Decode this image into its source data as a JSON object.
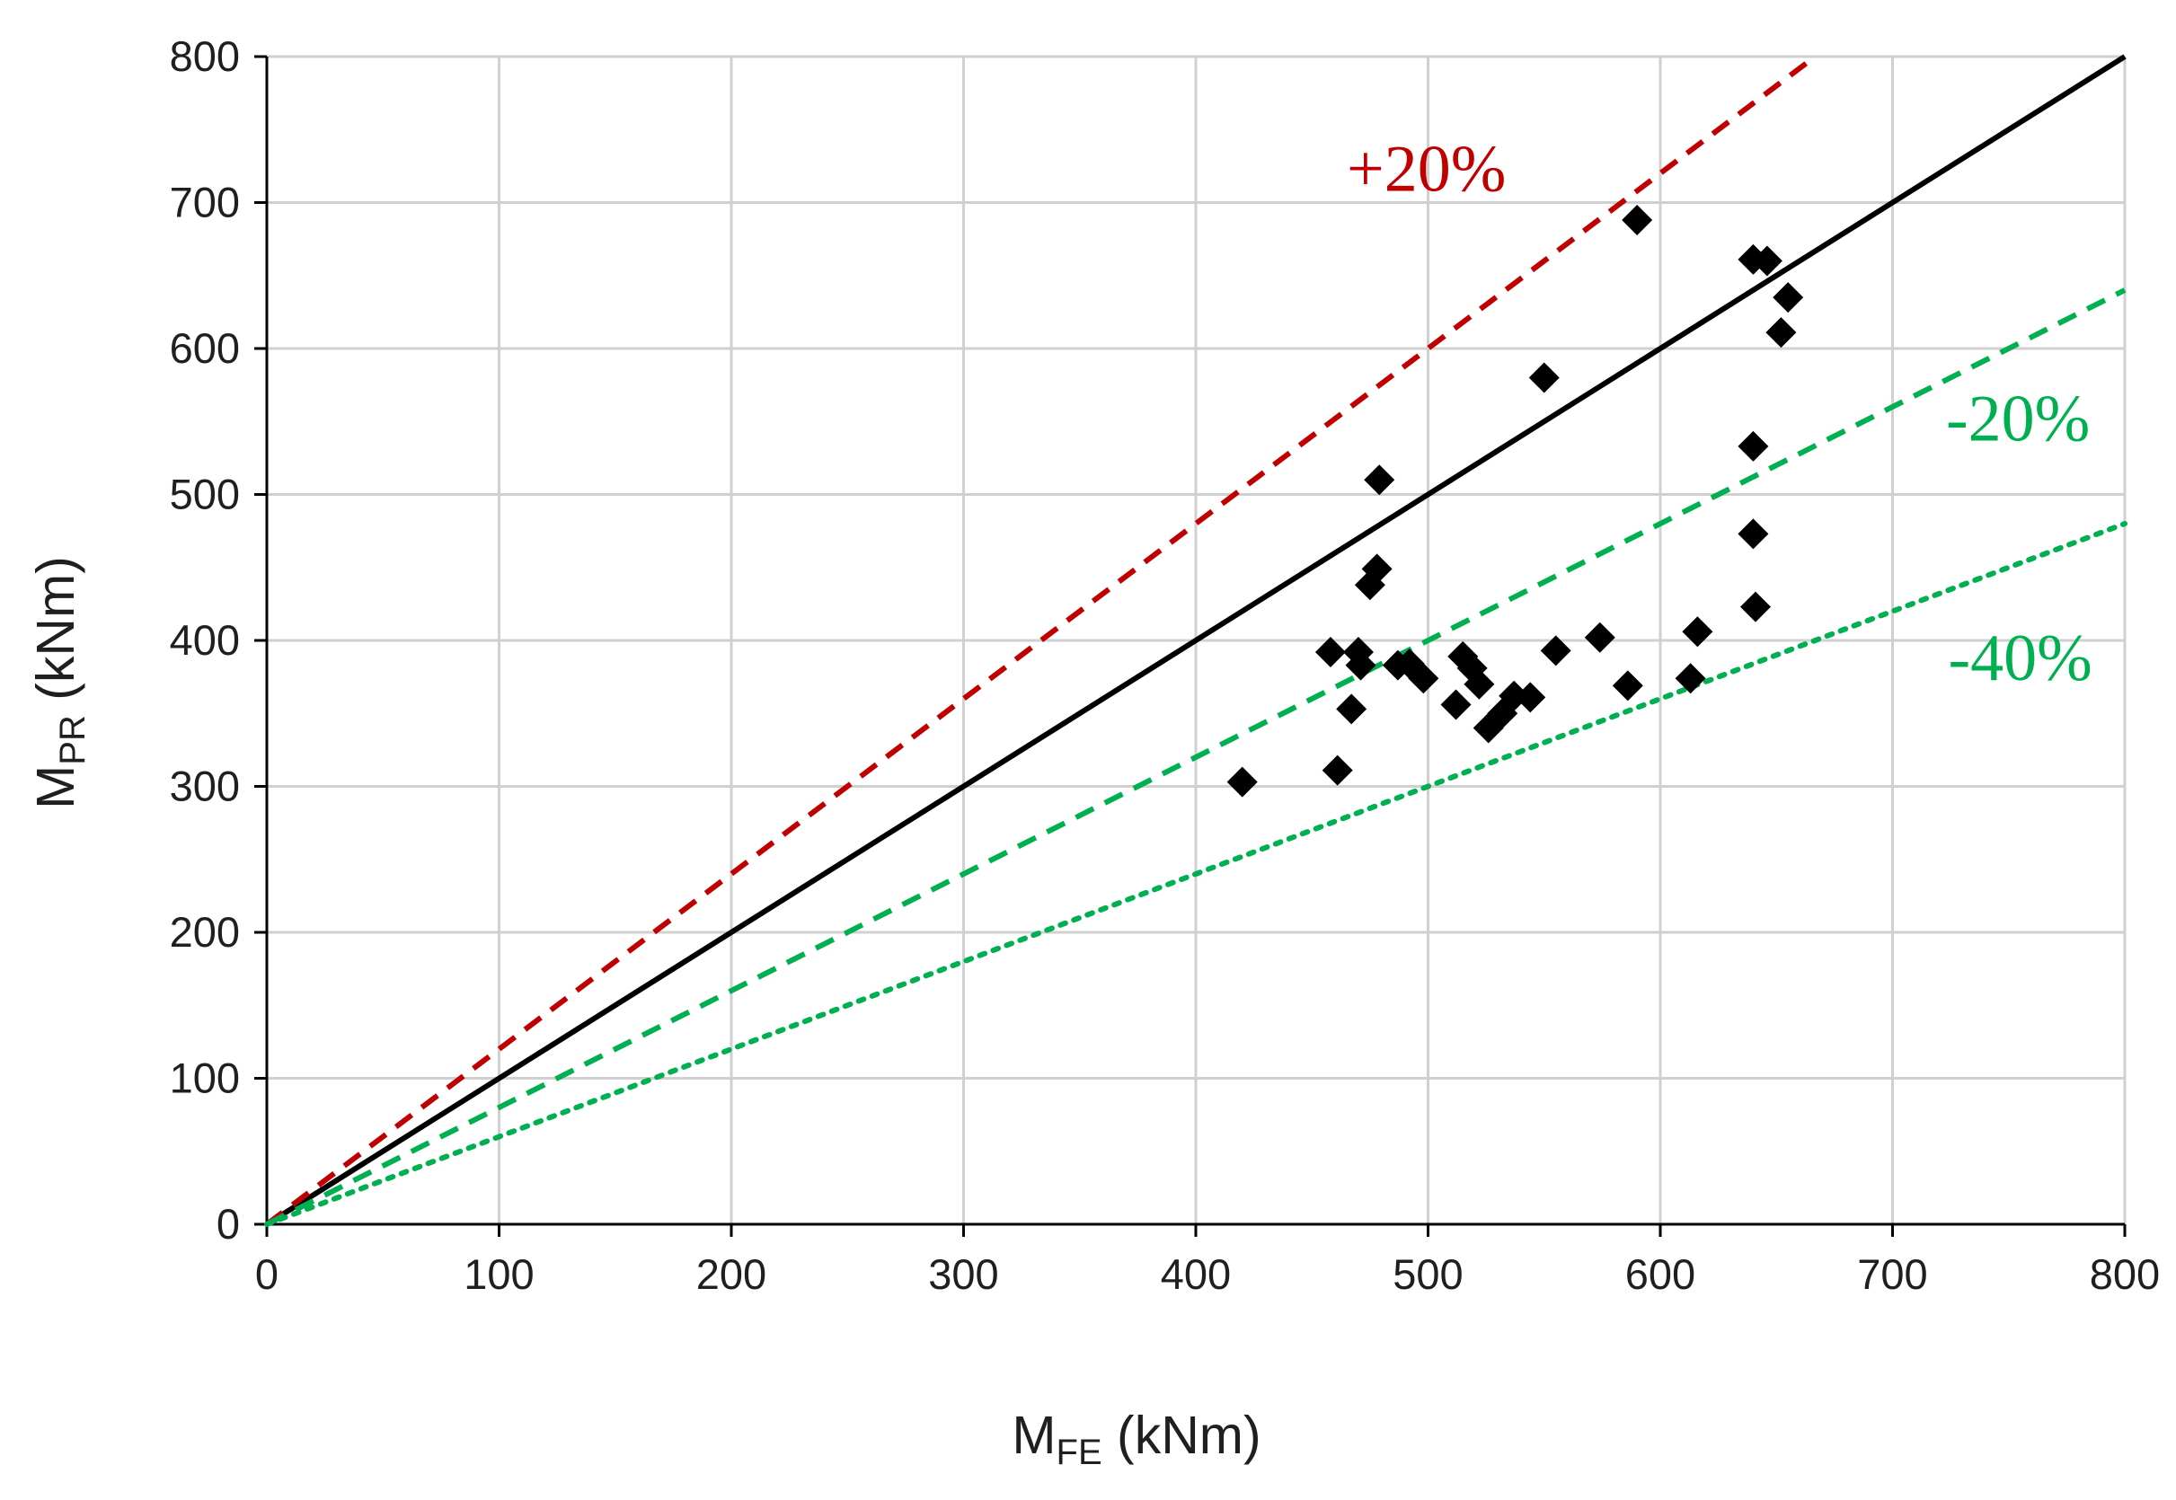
{
  "chart_data": {
    "type": "scatter",
    "title": "",
    "xlabel": {
      "main": "M",
      "sub": "FE",
      "unit": " (kNm)"
    },
    "ylabel": {
      "main": "M",
      "sub": "PR",
      "unit": " (kNm)"
    },
    "xlim": [
      0,
      800
    ],
    "ylim": [
      0,
      800
    ],
    "xticks": [
      "0",
      "100",
      "200",
      "300",
      "400",
      "500",
      "600",
      "700",
      "800"
    ],
    "yticks": [
      "0",
      "100",
      "200",
      "300",
      "400",
      "500",
      "600",
      "700",
      "800"
    ],
    "grid": true,
    "legend": "none",
    "reference_lines": [
      {
        "name": "equality",
        "slope": 1.0,
        "style": "solid",
        "color": "#000000"
      },
      {
        "name": "plus-20",
        "slope": 1.2,
        "style": "dashed",
        "color": "#c00000"
      },
      {
        "name": "minus-20",
        "slope": 0.8,
        "style": "dashed",
        "color": "#00b050"
      },
      {
        "name": "minus-40",
        "slope": 0.6,
        "style": "dotted",
        "color": "#00b050"
      }
    ],
    "annotations": [
      {
        "text": "+20%",
        "color": "#c00000"
      },
      {
        "text": "-20%",
        "color": "#00b050"
      },
      {
        "text": "-40%",
        "color": "#00b050"
      }
    ],
    "series": [
      {
        "name": "data",
        "marker": "diamond",
        "color": "#000000",
        "points": [
          [
            420,
            303
          ],
          [
            458,
            392
          ],
          [
            461,
            311
          ],
          [
            467,
            353
          ],
          [
            470,
            392
          ],
          [
            471,
            383
          ],
          [
            475,
            438
          ],
          [
            478,
            449
          ],
          [
            479,
            510
          ],
          [
            487,
            383
          ],
          [
            492,
            384
          ],
          [
            498,
            374
          ],
          [
            512,
            356
          ],
          [
            515,
            389
          ],
          [
            519,
            381
          ],
          [
            522,
            370
          ],
          [
            526,
            340
          ],
          [
            532,
            350
          ],
          [
            537,
            362
          ],
          [
            544,
            361
          ],
          [
            550,
            580
          ],
          [
            555,
            393
          ],
          [
            574,
            402
          ],
          [
            586,
            369
          ],
          [
            590,
            688
          ],
          [
            613,
            374
          ],
          [
            616,
            406
          ],
          [
            640,
            533
          ],
          [
            640,
            473
          ],
          [
            641,
            423
          ],
          [
            640,
            661
          ],
          [
            646,
            660
          ],
          [
            652,
            611
          ],
          [
            655,
            635
          ]
        ]
      }
    ]
  }
}
